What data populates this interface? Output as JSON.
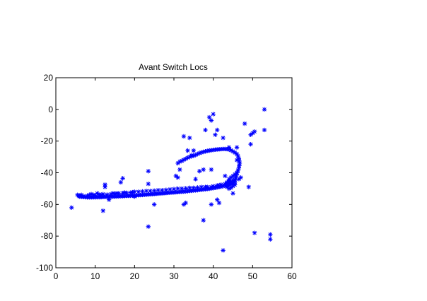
{
  "chart_data": {
    "type": "scatter",
    "title": "Avant Switch Locs",
    "xlabel": "",
    "ylabel": "",
    "xlim": [
      0,
      60
    ],
    "ylim": [
      -100,
      20
    ],
    "xticks": [
      0,
      10,
      20,
      30,
      40,
      50,
      60
    ],
    "yticks": [
      20,
      0,
      -20,
      -40,
      -60,
      -80,
      -100
    ],
    "xtick_labels": [
      "0",
      "10",
      "20",
      "30",
      "40",
      "50",
      "60"
    ],
    "ytick_labels": [
      "20",
      "0",
      "-20",
      "-40",
      "-60",
      "-80",
      "-100"
    ],
    "grid": false,
    "legend": "none",
    "marker": "asterisk",
    "color": "#0000ff",
    "series": [
      {
        "points": [
          [
            4,
            -62
          ],
          [
            5.5,
            -54
          ],
          [
            6,
            -54.5
          ],
          [
            6.5,
            -54
          ],
          [
            7,
            -54.8
          ],
          [
            8,
            -54.5
          ],
          [
            8.5,
            -54
          ],
          [
            9,
            -53.5
          ],
          [
            9.5,
            -54
          ],
          [
            10,
            -54.2
          ],
          [
            10.5,
            -53
          ],
          [
            11,
            -53.8
          ],
          [
            11.5,
            -54
          ],
          [
            12,
            -53.5
          ],
          [
            12.5,
            -49
          ],
          [
            12.5,
            -47.5
          ],
          [
            12,
            -64
          ],
          [
            13,
            -53.8
          ],
          [
            13.5,
            -57
          ],
          [
            14,
            -53.5
          ],
          [
            14.5,
            -53
          ],
          [
            15,
            -53.2
          ],
          [
            15.5,
            -53
          ],
          [
            16,
            -53
          ],
          [
            16.5,
            -46
          ],
          [
            17,
            -43.5
          ],
          [
            17,
            -52.8
          ],
          [
            17.5,
            -52.5
          ],
          [
            18,
            -52.7
          ],
          [
            19,
            -52.5
          ],
          [
            19.5,
            -52.3
          ],
          [
            20,
            -52
          ],
          [
            20,
            -55
          ],
          [
            21,
            -52
          ],
          [
            22,
            -51.8
          ],
          [
            23,
            -51.5
          ],
          [
            23.5,
            -39
          ],
          [
            23.5,
            -47
          ],
          [
            23.5,
            -74
          ],
          [
            24,
            -51.5
          ],
          [
            25,
            -51.3
          ],
          [
            25,
            -60
          ],
          [
            26,
            -51
          ],
          [
            27,
            -51
          ],
          [
            28,
            -50.8
          ],
          [
            29,
            -50.5
          ],
          [
            30,
            -50.3
          ],
          [
            30.5,
            -42
          ],
          [
            31,
            -50
          ],
          [
            31,
            -43
          ],
          [
            31.5,
            -38
          ],
          [
            32,
            -50
          ],
          [
            32.5,
            -17
          ],
          [
            32.5,
            -60
          ],
          [
            33,
            -49.8
          ],
          [
            33,
            -59
          ],
          [
            33.5,
            -26
          ],
          [
            34,
            -18
          ],
          [
            34,
            -49.5
          ],
          [
            34.5,
            -29
          ],
          [
            35,
            -49.5
          ],
          [
            35,
            -26
          ],
          [
            35.5,
            -44
          ],
          [
            36,
            -49.3
          ],
          [
            36.5,
            -39
          ],
          [
            37,
            -49
          ],
          [
            37.5,
            -38
          ],
          [
            37.5,
            -70
          ],
          [
            38,
            -13
          ],
          [
            38,
            -49
          ],
          [
            38.5,
            -49
          ],
          [
            39,
            -5
          ],
          [
            39.5,
            -49
          ],
          [
            39.5,
            -7
          ],
          [
            39.5,
            -38
          ],
          [
            39.5,
            -60
          ],
          [
            40,
            -3
          ],
          [
            40,
            -48.5
          ],
          [
            40.5,
            -16
          ],
          [
            41,
            -48
          ],
          [
            41,
            -13
          ],
          [
            41,
            -57
          ],
          [
            41.5,
            -48
          ],
          [
            41.5,
            -59
          ],
          [
            42,
            -47.5
          ],
          [
            42.5,
            -18
          ],
          [
            42.5,
            -89
          ],
          [
            43,
            -47
          ],
          [
            43,
            -42
          ],
          [
            43.5,
            -46.5
          ],
          [
            44,
            -46
          ],
          [
            44,
            -24
          ],
          [
            44.5,
            -45.5
          ],
          [
            45,
            -45
          ],
          [
            45,
            -53
          ],
          [
            45.5,
            -44.5
          ],
          [
            46,
            -24
          ],
          [
            46,
            -32
          ],
          [
            46.5,
            -44
          ],
          [
            47,
            -43
          ],
          [
            48,
            -9
          ],
          [
            49,
            -49
          ],
          [
            49.5,
            -22
          ],
          [
            49.5,
            -16
          ],
          [
            50,
            -15
          ],
          [
            50.5,
            -14
          ],
          [
            50.5,
            -78
          ],
          [
            53,
            0
          ],
          [
            53,
            -13
          ],
          [
            54.5,
            -79
          ],
          [
            54.5,
            -82
          ],
          [
            31,
            -34
          ],
          [
            31.5,
            -33
          ],
          [
            32,
            -32.5
          ],
          [
            32.5,
            -31.8
          ],
          [
            33,
            -31.2
          ],
          [
            33.5,
            -30.5
          ],
          [
            34,
            -30
          ],
          [
            34.5,
            -29.5
          ],
          [
            35,
            -29.2
          ],
          [
            35.5,
            -28.8
          ],
          [
            36,
            -28.2
          ],
          [
            36.5,
            -27.6
          ],
          [
            37,
            -27.2
          ],
          [
            37.5,
            -26.8
          ],
          [
            38,
            -26.5
          ],
          [
            38.5,
            -26.2
          ],
          [
            39,
            -26
          ],
          [
            39.5,
            -25.8
          ],
          [
            40,
            -25.6
          ],
          [
            40.5,
            -25.4
          ],
          [
            41,
            -25.3
          ],
          [
            41.5,
            -25.2
          ],
          [
            42,
            -25.1
          ],
          [
            42.5,
            -25
          ],
          [
            43,
            -25
          ],
          [
            43.5,
            -25.1
          ],
          [
            44,
            -25.3
          ],
          [
            44.5,
            -25.8
          ],
          [
            45,
            -26.5
          ],
          [
            45.5,
            -27.3
          ],
          [
            46,
            -28.2
          ],
          [
            46.3,
            -29.5
          ],
          [
            46.5,
            -31
          ],
          [
            46.6,
            -32.5
          ],
          [
            46.7,
            -34
          ],
          [
            46.6,
            -35.5
          ],
          [
            46.5,
            -37
          ],
          [
            46.3,
            -38.5
          ],
          [
            46.1,
            -40
          ],
          [
            45.9,
            -41.5
          ],
          [
            45.7,
            -43
          ],
          [
            45.5,
            -44.3
          ],
          [
            45.2,
            -45.5
          ],
          [
            44.8,
            -46.5
          ],
          [
            44.2,
            -47.3
          ],
          [
            43.5,
            -47.8
          ],
          [
            43,
            -48.2
          ],
          [
            42.5,
            -48.5
          ],
          [
            42,
            -48.8
          ],
          [
            41.5,
            -49
          ],
          [
            41,
            -49.2
          ],
          [
            40.5,
            -49.5
          ],
          [
            40,
            -49.7
          ],
          [
            39.5,
            -49.9
          ],
          [
            39,
            -50.1
          ],
          [
            38.5,
            -50.2
          ],
          [
            38,
            -50.4
          ],
          [
            37.5,
            -50.5
          ],
          [
            37,
            -50.7
          ],
          [
            36.5,
            -50.8
          ],
          [
            36,
            -51
          ],
          [
            35.5,
            -51.1
          ],
          [
            35,
            -51.2
          ],
          [
            34.5,
            -51.4
          ],
          [
            34,
            -51.5
          ],
          [
            33.5,
            -51.6
          ],
          [
            33,
            -51.8
          ],
          [
            32.5,
            -51.9
          ],
          [
            32,
            -52
          ],
          [
            31.5,
            -52.1
          ],
          [
            31,
            -52.2
          ],
          [
            30.5,
            -52.3
          ],
          [
            30,
            -52.4
          ],
          [
            29.5,
            -52.5
          ],
          [
            29,
            -52.6
          ],
          [
            28.5,
            -52.7
          ],
          [
            28,
            -52.8
          ],
          [
            27.5,
            -52.9
          ],
          [
            27,
            -53
          ],
          [
            26.5,
            -53.1
          ],
          [
            26,
            -53.2
          ],
          [
            25.5,
            -53.3
          ],
          [
            25,
            -53.4
          ],
          [
            24.5,
            -53.5
          ],
          [
            24,
            -53.6
          ],
          [
            23.5,
            -53.7
          ],
          [
            23,
            -53.8
          ],
          [
            22.5,
            -53.9
          ],
          [
            22,
            -54
          ],
          [
            21.5,
            -54.1
          ],
          [
            21,
            -54.2
          ],
          [
            20.5,
            -54.3
          ],
          [
            20,
            -54.4
          ],
          [
            19.5,
            -54.4
          ],
          [
            19,
            -54.5
          ],
          [
            18.5,
            -54.6
          ],
          [
            18,
            -54.6
          ],
          [
            17.5,
            -54.7
          ],
          [
            17,
            -54.8
          ],
          [
            16.5,
            -54.8
          ],
          [
            16,
            -54.9
          ],
          [
            15.5,
            -55
          ],
          [
            15,
            -55
          ],
          [
            14.5,
            -55.1
          ],
          [
            14,
            -55.1
          ],
          [
            13.5,
            -55.2
          ],
          [
            13,
            -55.2
          ],
          [
            12.5,
            -55.3
          ],
          [
            12,
            -55.3
          ],
          [
            11.5,
            -55.4
          ],
          [
            11,
            -55.4
          ],
          [
            10.5,
            -55.4
          ],
          [
            10,
            -55.5
          ],
          [
            9.5,
            -55.5
          ],
          [
            9,
            -55.5
          ],
          [
            8.5,
            -55.5
          ],
          [
            8,
            -55.5
          ],
          [
            7.5,
            -55.4
          ],
          [
            7,
            -55.3
          ],
          [
            6.5,
            -55.2
          ],
          [
            6,
            -55
          ],
          [
            5.8,
            -54.5
          ],
          [
            44,
            -44
          ],
          [
            44.5,
            -43
          ],
          [
            45,
            -42
          ],
          [
            45.5,
            -41
          ],
          [
            46,
            -40
          ],
          [
            44,
            -45
          ],
          [
            43.5,
            -46
          ],
          [
            44.5,
            -46.5
          ],
          [
            45,
            -47
          ],
          [
            45.5,
            -46
          ],
          [
            44,
            -48
          ],
          [
            43.5,
            -49
          ],
          [
            44,
            -50
          ],
          [
            44.5,
            -49.5
          ],
          [
            45,
            -48.5
          ],
          [
            45.5,
            -47.5
          ]
        ]
      }
    ]
  }
}
